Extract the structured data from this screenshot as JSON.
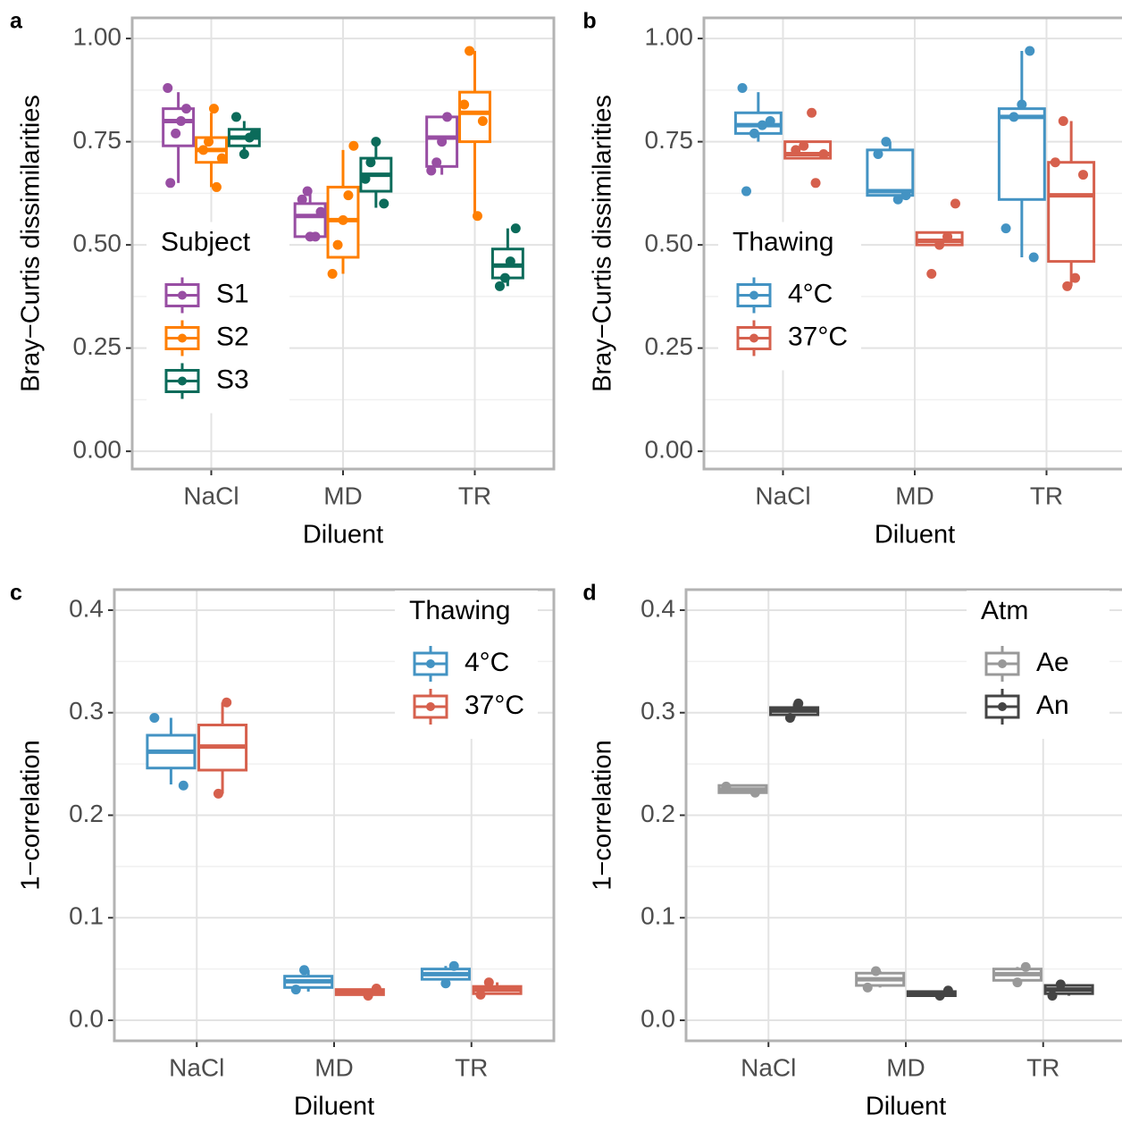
{
  "chart_data": [
    {
      "type": "box",
      "panel": "a",
      "xlabel": "Diluent",
      "ylabel": "Bray−Curtis dissimilarities",
      "categories": [
        "NaCl",
        "MD",
        "TR"
      ],
      "ylim": [
        -0.043,
        1.05
      ],
      "yticks": [
        {
          "value": 0,
          "label": "0.00"
        },
        0.25,
        {
          "value": 0.5,
          "label": "0.50"
        },
        0.75,
        {
          "value": 1,
          "label": "1.00"
        }
      ],
      "grid": true,
      "legend_title": "Subject",
      "legend_position": "left",
      "series": [
        {
          "name": "S1",
          "color": "#984ea3",
          "boxes": [
            {
              "low": 0.65,
              "q1": 0.74,
              "median": 0.8,
              "q3": 0.83,
              "high": 0.87,
              "points": [
                0.88,
                0.83,
                0.8,
                0.77,
                0.65
              ]
            },
            {
              "low": 0.51,
              "q1": 0.52,
              "median": 0.57,
              "q3": 0.6,
              "high": 0.63,
              "points": [
                0.63,
                0.61,
                0.58,
                0.52,
                0.52
              ]
            },
            {
              "low": 0.67,
              "q1": 0.69,
              "median": 0.76,
              "q3": 0.81,
              "high": 0.81,
              "points": [
                0.81,
                0.75,
                0.7,
                0.68
              ]
            }
          ]
        },
        {
          "name": "S2",
          "color": "#ff7f00",
          "boxes": [
            {
              "low": 0.64,
              "q1": 0.7,
              "median": 0.73,
              "q3": 0.76,
              "high": 0.82,
              "points": [
                0.83,
                0.75,
                0.73,
                0.71,
                0.64
              ]
            },
            {
              "low": 0.43,
              "q1": 0.47,
              "median": 0.56,
              "q3": 0.64,
              "high": 0.73,
              "points": [
                0.74,
                0.62,
                0.56,
                0.5,
                0.43
              ]
            },
            {
              "low": 0.57,
              "q1": 0.75,
              "median": 0.82,
              "q3": 0.87,
              "high": 0.97,
              "points": [
                0.97,
                0.84,
                0.8,
                0.57
              ]
            }
          ]
        },
        {
          "name": "S3",
          "color": "#0b6b5a",
          "boxes": [
            {
              "low": 0.72,
              "q1": 0.74,
              "median": 0.76,
              "q3": 0.78,
              "high": 0.8,
              "points": [
                0.81,
                0.77,
                0.76,
                0.72
              ]
            },
            {
              "low": 0.59,
              "q1": 0.63,
              "median": 0.67,
              "q3": 0.71,
              "high": 0.75,
              "points": [
                0.75,
                0.7,
                0.66,
                0.6
              ]
            },
            {
              "low": 0.4,
              "q1": 0.42,
              "median": 0.45,
              "q3": 0.49,
              "high": 0.54,
              "points": [
                0.54,
                0.46,
                0.42,
                0.4
              ]
            }
          ]
        }
      ]
    },
    {
      "type": "box",
      "panel": "b",
      "xlabel": "Diluent",
      "ylabel": "Bray−Curtis dissimilarities",
      "categories": [
        "NaCl",
        "MD",
        "TR"
      ],
      "ylim": [
        -0.043,
        1.05
      ],
      "yticks": [
        {
          "value": 0,
          "label": "0.00"
        },
        0.25,
        {
          "value": 0.5,
          "label": "0.50"
        },
        0.75,
        {
          "value": 1,
          "label": "1.00"
        }
      ],
      "grid": true,
      "legend_title": "Thawing",
      "legend_position": "left",
      "series": [
        {
          "name": "4°C",
          "color": "#4393c3",
          "boxes": [
            {
              "low": 0.75,
              "q1": 0.77,
              "median": 0.79,
              "q3": 0.82,
              "high": 0.87,
              "points": [
                0.88,
                0.8,
                0.79,
                0.77,
                0.63
              ]
            },
            {
              "low": 0.62,
              "q1": 0.62,
              "median": 0.63,
              "q3": 0.73,
              "high": 0.75,
              "points": [
                0.75,
                0.72,
                0.62,
                0.61
              ]
            },
            {
              "low": 0.47,
              "q1": 0.61,
              "median": 0.81,
              "q3": 0.83,
              "high": 0.97,
              "points": [
                0.97,
                0.84,
                0.81,
                0.54,
                0.47
              ]
            }
          ]
        },
        {
          "name": "37°C",
          "color": "#d6604d",
          "boxes": [
            {
              "low": 0.71,
              "q1": 0.71,
              "median": 0.72,
              "q3": 0.75,
              "high": 0.75,
              "points": [
                0.82,
                0.74,
                0.73,
                0.72,
                0.65
              ]
            },
            {
              "low": 0.5,
              "q1": 0.5,
              "median": 0.51,
              "q3": 0.53,
              "high": 0.53,
              "points": [
                0.6,
                0.52,
                0.5,
                0.43
              ]
            },
            {
              "low": 0.4,
              "q1": 0.46,
              "median": 0.62,
              "q3": 0.7,
              "high": 0.8,
              "points": [
                0.8,
                0.7,
                0.67,
                0.42,
                0.4
              ]
            }
          ]
        }
      ]
    },
    {
      "type": "box",
      "panel": "c",
      "xlabel": "Diluent",
      "ylabel": "1−correlation",
      "categories": [
        "NaCl",
        "MD",
        "TR"
      ],
      "ylim": [
        -0.02,
        0.42
      ],
      "yticks": [
        {
          "value": 0,
          "label": "0.0"
        },
        0.1,
        0.2,
        0.3,
        0.4
      ],
      "grid": true,
      "legend_title": "Thawing",
      "legend_position": "top-right",
      "series": [
        {
          "name": "4°C",
          "color": "#4393c3",
          "boxes": [
            {
              "low": 0.23,
              "q1": 0.246,
              "median": 0.262,
              "q3": 0.278,
              "high": 0.295,
              "points": [
                0.295,
                0.229
              ]
            },
            {
              "low": 0.028,
              "q1": 0.032,
              "median": 0.038,
              "q3": 0.043,
              "high": 0.049,
              "points": [
                0.049,
                0.03
              ]
            },
            {
              "low": 0.036,
              "q1": 0.04,
              "median": 0.045,
              "q3": 0.05,
              "high": 0.053,
              "points": [
                0.053,
                0.036
              ]
            }
          ]
        },
        {
          "name": "37°C",
          "color": "#d6604d",
          "boxes": [
            {
              "low": 0.221,
              "q1": 0.244,
              "median": 0.267,
              "q3": 0.288,
              "high": 0.31,
              "points": [
                0.31,
                0.221
              ]
            },
            {
              "low": 0.024,
              "q1": 0.025,
              "median": 0.027,
              "q3": 0.03,
              "high": 0.031,
              "points": [
                0.031,
                0.024
              ]
            },
            {
              "low": 0.025,
              "q1": 0.026,
              "median": 0.03,
              "q3": 0.033,
              "high": 0.037,
              "points": [
                0.037,
                0.025
              ]
            }
          ]
        }
      ]
    },
    {
      "type": "box",
      "panel": "d",
      "xlabel": "Diluent",
      "ylabel": "1−correlation",
      "categories": [
        "NaCl",
        "MD",
        "TR"
      ],
      "ylim": [
        -0.02,
        0.42
      ],
      "yticks": [
        {
          "value": 0,
          "label": "0.0"
        },
        0.1,
        0.2,
        0.3,
        0.4
      ],
      "grid": true,
      "legend_title": "Atm",
      "legend_position": "top-right",
      "series": [
        {
          "name": "Ae",
          "color": "#999999",
          "boxes": [
            {
              "low": 0.222,
              "q1": 0.222,
              "median": 0.225,
              "q3": 0.229,
              "high": 0.229,
              "points": [
                0.228,
                0.222
              ]
            },
            {
              "low": 0.032,
              "q1": 0.034,
              "median": 0.04,
              "q3": 0.046,
              "high": 0.048,
              "points": [
                0.048,
                0.032
              ]
            },
            {
              "low": 0.037,
              "q1": 0.039,
              "median": 0.045,
              "q3": 0.05,
              "high": 0.052,
              "points": [
                0.052,
                0.037
              ]
            }
          ]
        },
        {
          "name": "An",
          "color": "#444444",
          "boxes": [
            {
              "low": 0.295,
              "q1": 0.298,
              "median": 0.302,
              "q3": 0.305,
              "high": 0.309,
              "points": [
                0.309,
                0.295
              ]
            },
            {
              "low": 0.024,
              "q1": 0.024,
              "median": 0.026,
              "q3": 0.028,
              "high": 0.029,
              "points": [
                0.029,
                0.024
              ]
            },
            {
              "low": 0.024,
              "q1": 0.026,
              "median": 0.03,
              "q3": 0.034,
              "high": 0.035,
              "points": [
                0.035,
                0.024
              ]
            }
          ]
        }
      ]
    }
  ]
}
